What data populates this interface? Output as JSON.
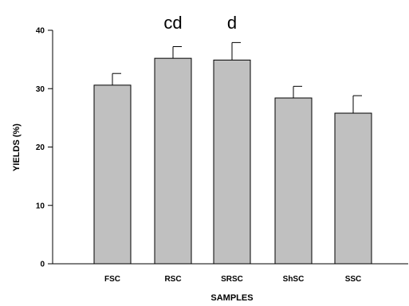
{
  "chart_data": {
    "type": "bar",
    "title": "",
    "xlabel": "SAMPLES",
    "ylabel": "YIELDS (%)",
    "categories": [
      "FSC",
      "RSC",
      "SRSC",
      "ShSC",
      "SSC"
    ],
    "values": [
      30.6,
      35.2,
      34.9,
      28.4,
      25.8
    ],
    "error_bars": [
      2.0,
      2.0,
      3.0,
      2.0,
      3.0
    ],
    "ylim": [
      0,
      40
    ],
    "yticks": [
      0,
      10,
      20,
      30,
      40
    ],
    "grid": false,
    "legend": "none",
    "bar_color": "#c0c0c0",
    "annotations": [
      {
        "category": "RSC",
        "text": "cd"
      },
      {
        "category": "SRSC",
        "text": "d"
      }
    ]
  }
}
